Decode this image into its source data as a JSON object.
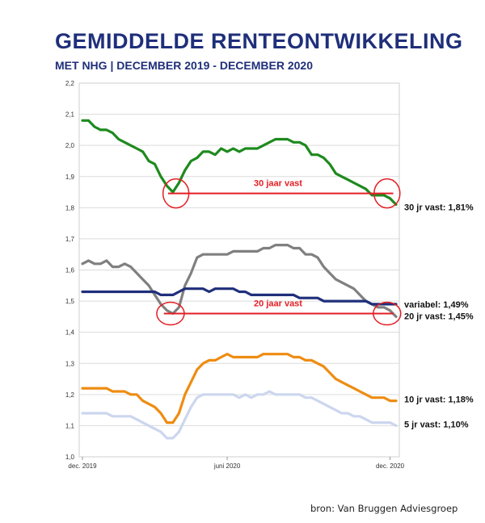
{
  "header": {
    "title": "GEMIDDELDE RENTEONTWIKKELING",
    "subtitle": "MET NHG | DECEMBER 2019 - DECEMBER 2020"
  },
  "footer": {
    "source": "bron: Van Bruggen Adviesgroep"
  },
  "colors": {
    "title": "#1f2f7a",
    "green_30jr": "#1e8a1e",
    "grey_20jr": "#808080",
    "navy_variabel": "#1f2f7a",
    "orange_10jr": "#ee8c12",
    "lightblue_5jr": "#ccd6ee",
    "annotation_red": "#e31e24"
  },
  "chart_data": {
    "type": "line",
    "ylim": [
      1.0,
      2.2
    ],
    "yticks": [
      "1,0",
      "1,1",
      "1,2",
      "1,3",
      "1,4",
      "1,5",
      "1,6",
      "1,7",
      "1,8",
      "1,9",
      "2,0",
      "2,1",
      "2,2"
    ],
    "xtick_labels": [
      {
        "label": "dec. 2019",
        "index": 0
      },
      {
        "label": "juni 2020",
        "index": 24
      },
      {
        "label": "dec. 2020",
        "index": 51
      }
    ],
    "grid": true,
    "series": [
      {
        "key": "30jr",
        "label": "30 jr vast: 1,81%",
        "color": "#1e8a1e",
        "values": [
          2.08,
          2.08,
          2.06,
          2.05,
          2.05,
          2.04,
          2.02,
          2.01,
          2.0,
          1.99,
          1.98,
          1.95,
          1.94,
          1.9,
          1.87,
          1.85,
          1.88,
          1.92,
          1.95,
          1.96,
          1.98,
          1.98,
          1.97,
          1.99,
          1.98,
          1.99,
          1.98,
          1.99,
          1.99,
          1.99,
          2.0,
          2.01,
          2.02,
          2.02,
          2.02,
          2.01,
          2.01,
          2.0,
          1.97,
          1.97,
          1.96,
          1.94,
          1.91,
          1.9,
          1.89,
          1.88,
          1.87,
          1.86,
          1.84,
          1.84,
          1.84,
          1.83,
          1.81
        ]
      },
      {
        "key": "20jr",
        "label": "20 jr vast: 1,45%",
        "color": "#808080",
        "values": [
          1.62,
          1.63,
          1.62,
          1.62,
          1.63,
          1.61,
          1.61,
          1.62,
          1.61,
          1.59,
          1.57,
          1.55,
          1.52,
          1.49,
          1.47,
          1.46,
          1.48,
          1.55,
          1.59,
          1.64,
          1.65,
          1.65,
          1.65,
          1.65,
          1.65,
          1.66,
          1.66,
          1.66,
          1.66,
          1.66,
          1.67,
          1.67,
          1.68,
          1.68,
          1.68,
          1.67,
          1.67,
          1.65,
          1.65,
          1.64,
          1.61,
          1.59,
          1.57,
          1.56,
          1.55,
          1.54,
          1.52,
          1.5,
          1.49,
          1.48,
          1.48,
          1.47,
          1.45
        ]
      },
      {
        "key": "variabel",
        "label": "variabel: 1,49%",
        "color": "#1f2f7a",
        "values": [
          1.53,
          1.53,
          1.53,
          1.53,
          1.53,
          1.53,
          1.53,
          1.53,
          1.53,
          1.53,
          1.53,
          1.53,
          1.53,
          1.52,
          1.52,
          1.52,
          1.53,
          1.54,
          1.54,
          1.54,
          1.54,
          1.53,
          1.54,
          1.54,
          1.54,
          1.54,
          1.53,
          1.53,
          1.52,
          1.52,
          1.52,
          1.52,
          1.52,
          1.52,
          1.52,
          1.52,
          1.51,
          1.51,
          1.51,
          1.51,
          1.5,
          1.5,
          1.5,
          1.5,
          1.5,
          1.5,
          1.5,
          1.5,
          1.49,
          1.49,
          1.49,
          1.49,
          1.49
        ]
      },
      {
        "key": "10jr",
        "label": "10 jr vast: 1,18%",
        "color": "#ee8c12",
        "values": [
          1.22,
          1.22,
          1.22,
          1.22,
          1.22,
          1.21,
          1.21,
          1.21,
          1.2,
          1.2,
          1.18,
          1.17,
          1.16,
          1.14,
          1.11,
          1.11,
          1.14,
          1.2,
          1.24,
          1.28,
          1.3,
          1.31,
          1.31,
          1.32,
          1.33,
          1.32,
          1.32,
          1.32,
          1.32,
          1.32,
          1.33,
          1.33,
          1.33,
          1.33,
          1.33,
          1.32,
          1.32,
          1.31,
          1.31,
          1.3,
          1.29,
          1.27,
          1.25,
          1.24,
          1.23,
          1.22,
          1.21,
          1.2,
          1.19,
          1.19,
          1.19,
          1.18,
          1.18
        ]
      },
      {
        "key": "5jr",
        "label": "5 jr vast: 1,10%",
        "color": "#ccd6ee",
        "values": [
          1.14,
          1.14,
          1.14,
          1.14,
          1.14,
          1.13,
          1.13,
          1.13,
          1.13,
          1.12,
          1.11,
          1.1,
          1.09,
          1.08,
          1.06,
          1.06,
          1.08,
          1.12,
          1.16,
          1.19,
          1.2,
          1.2,
          1.2,
          1.2,
          1.2,
          1.2,
          1.19,
          1.2,
          1.19,
          1.2,
          1.2,
          1.21,
          1.2,
          1.2,
          1.2,
          1.2,
          1.2,
          1.19,
          1.19,
          1.18,
          1.17,
          1.16,
          1.15,
          1.14,
          1.14,
          1.13,
          1.13,
          1.12,
          1.11,
          1.11,
          1.11,
          1.11,
          1.1
        ]
      }
    ],
    "annotations": [
      {
        "label": "30 jaar vast",
        "y": 1.846,
        "x_from": 14.2,
        "x_to": 51,
        "circles": [
          15.5,
          50.5
        ]
      },
      {
        "label": "20 jaar vast",
        "y": 1.46,
        "x_from": 13.5,
        "x_to": 51,
        "circles": [
          14.6,
          50.5
        ]
      }
    ]
  }
}
